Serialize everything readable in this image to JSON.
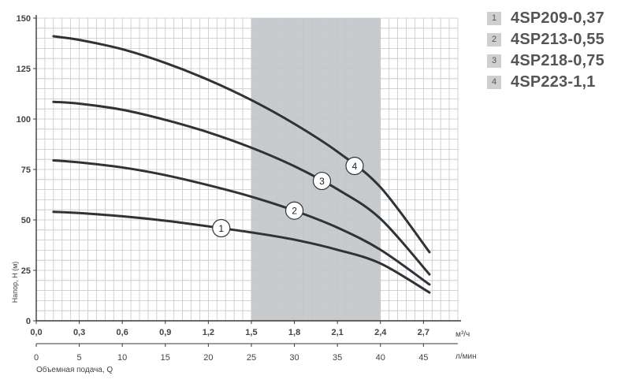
{
  "chart_data": {
    "type": "line",
    "ylabel": "Напор, H (м)",
    "xlabel": "Объемная подача, Q",
    "ylim": [
      0,
      150
    ],
    "y_ticks": [
      "0",
      "25",
      "50",
      "75",
      "100",
      "125",
      "150"
    ],
    "x_axis_m3h": {
      "unit": "м³/ч",
      "ticks": [
        "0,0",
        "0,3",
        "0,6",
        "0,9",
        "1,2",
        "1,5",
        "1,8",
        "2,1",
        "2,4",
        "2,7"
      ]
    },
    "x_axis_lmin": {
      "unit": "л/мин",
      "ticks": [
        "0",
        "5",
        "10",
        "15",
        "20",
        "25",
        "30",
        "35",
        "40",
        "45"
      ]
    },
    "x_range_lmin": [
      0,
      49
    ],
    "shaded_region_lmin": [
      25,
      40
    ],
    "grid": true,
    "legend_position": "top-right",
    "series": [
      {
        "marker": "1",
        "name": "4SP209-0,37",
        "marker_x": 21.5,
        "x": [
          2,
          5,
          10,
          15,
          20,
          25,
          30,
          35,
          40,
          45.7
        ],
        "y": [
          54,
          53.4,
          51.8,
          49.6,
          46.8,
          43.8,
          40.2,
          35.2,
          28.4,
          14
        ]
      },
      {
        "marker": "2",
        "name": "4SP213-0,55",
        "marker_x": 30,
        "x": [
          2,
          5,
          10,
          15,
          20,
          25,
          30,
          35,
          40,
          45.7
        ],
        "y": [
          79.5,
          78.5,
          76,
          72.2,
          67.2,
          61.5,
          54.6,
          46.2,
          35.2,
          18
        ]
      },
      {
        "marker": "3",
        "name": "4SP218-0,75",
        "marker_x": 33.2,
        "x": [
          2,
          5,
          10,
          15,
          20,
          25,
          30,
          35,
          40,
          45.7
        ],
        "y": [
          108.5,
          107.6,
          104.6,
          99.6,
          93.4,
          85.8,
          76.6,
          65.2,
          50.6,
          23
        ]
      },
      {
        "marker": "4",
        "name": "4SP223-1,1",
        "marker_x": 37,
        "x": [
          2,
          5,
          10,
          15,
          20,
          25,
          30,
          35,
          40,
          45.7
        ],
        "y": [
          141,
          139.2,
          134.6,
          127.8,
          119.4,
          109.4,
          97.6,
          83.8,
          66.2,
          34
        ]
      }
    ]
  },
  "legend": {
    "items": [
      {
        "num": "1",
        "label": "4SP209-0,37"
      },
      {
        "num": "2",
        "label": "4SP213-0,55"
      },
      {
        "num": "3",
        "label": "4SP218-0,75"
      },
      {
        "num": "4",
        "label": "4SP223-1,1"
      }
    ]
  },
  "colors": {
    "curve": "#2f3338",
    "grid": "#c4c6c8",
    "shade": "#c8cbce",
    "axis": "#3a3a3a",
    "tick_text": "#444444",
    "marker_fill": "#ffffff"
  }
}
